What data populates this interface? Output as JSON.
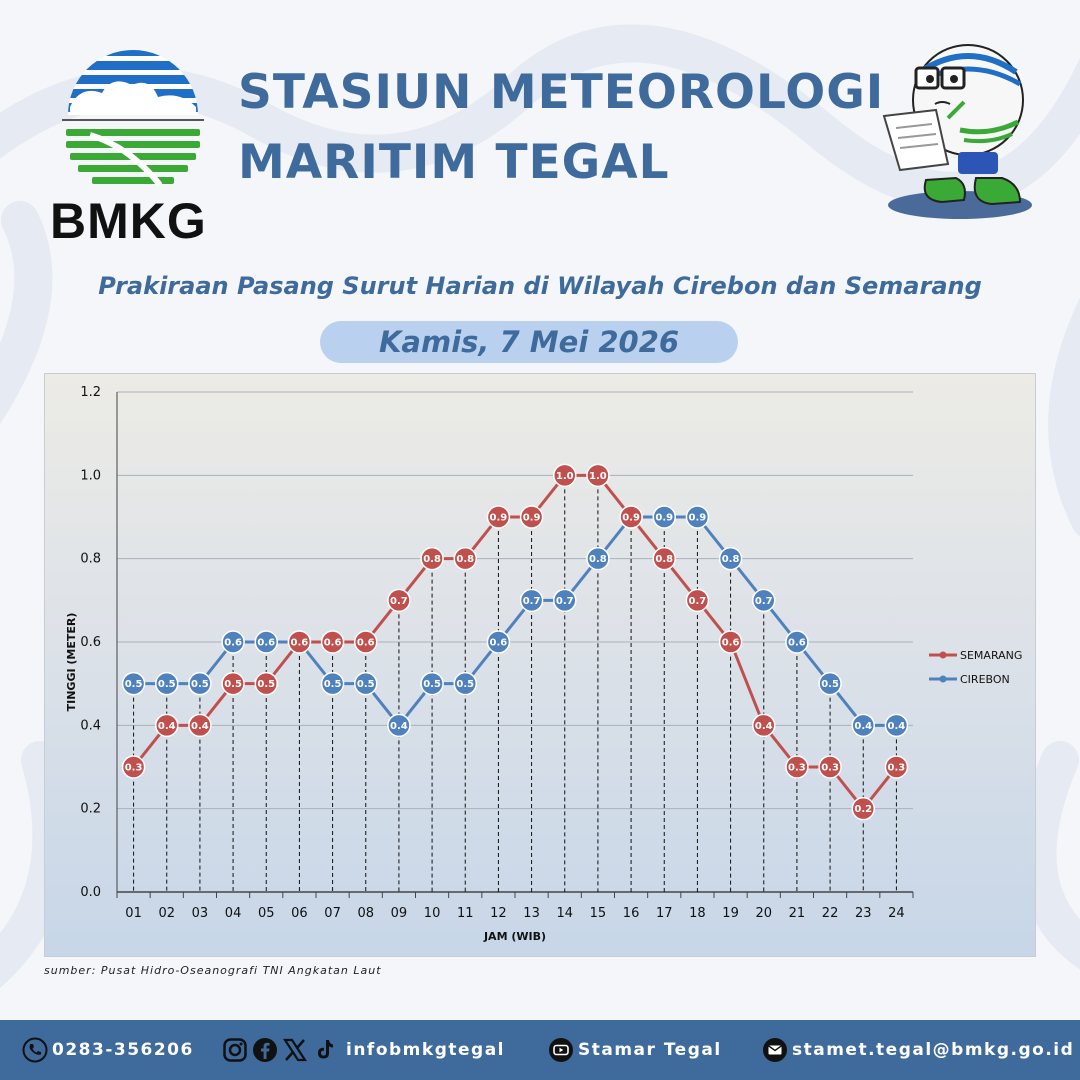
{
  "header": {
    "logo_text": "BMKG",
    "title_line1": "STASIUN METEOROLOGI",
    "title_line2": "MARITIM TEGAL",
    "subtitle": "Prakiraan Pasang Surut Harian di Wilayah Cirebon dan Semarang",
    "date": "Kamis, 7 Mei 2026"
  },
  "colors": {
    "semarang": "#c0504d",
    "cirebon": "#4f81bd",
    "brand_blue": "#3f6a9c",
    "logo_blue": "#1e6fc5",
    "logo_green": "#3aa935"
  },
  "chart_data": {
    "type": "line",
    "title": "",
    "xlabel": "JAM (WIB)",
    "ylabel": "TINGGI (METER)",
    "ylim": [
      0,
      1.2
    ],
    "yticks": [
      "0.0",
      "0.2",
      "0.4",
      "0.6",
      "0.8",
      "1.0",
      "1.2"
    ],
    "categories": [
      "01",
      "02",
      "03",
      "04",
      "05",
      "06",
      "07",
      "08",
      "09",
      "10",
      "11",
      "12",
      "13",
      "14",
      "15",
      "16",
      "17",
      "18",
      "19",
      "20",
      "21",
      "22",
      "23",
      "24"
    ],
    "grid": true,
    "legend_position": "right",
    "series": [
      {
        "name": "SEMARANG",
        "color": "#c0504d",
        "values": [
          0.3,
          0.4,
          0.4,
          0.5,
          0.5,
          0.6,
          0.6,
          0.6,
          0.7,
          0.8,
          0.8,
          0.9,
          0.9,
          1.0,
          1.0,
          0.9,
          0.8,
          0.7,
          0.6,
          0.4,
          0.3,
          0.3,
          0.2,
          0.3
        ]
      },
      {
        "name": "CIREBON",
        "color": "#4f81bd",
        "values": [
          0.5,
          0.5,
          0.5,
          0.6,
          0.6,
          0.6,
          0.5,
          0.5,
          0.4,
          0.5,
          0.5,
          0.6,
          0.7,
          0.7,
          0.8,
          0.9,
          0.9,
          0.9,
          0.8,
          0.7,
          0.6,
          0.5,
          0.4,
          0.4
        ]
      }
    ]
  },
  "source": "sumber: Pusat Hidro-Oseanografi TNI Angkatan Laut",
  "footer": {
    "phone": "0283-356206",
    "social": "infobmkgtegal",
    "youtube": "Stamar Tegal",
    "email": "stamet.tegal@bmkg.go.id"
  }
}
